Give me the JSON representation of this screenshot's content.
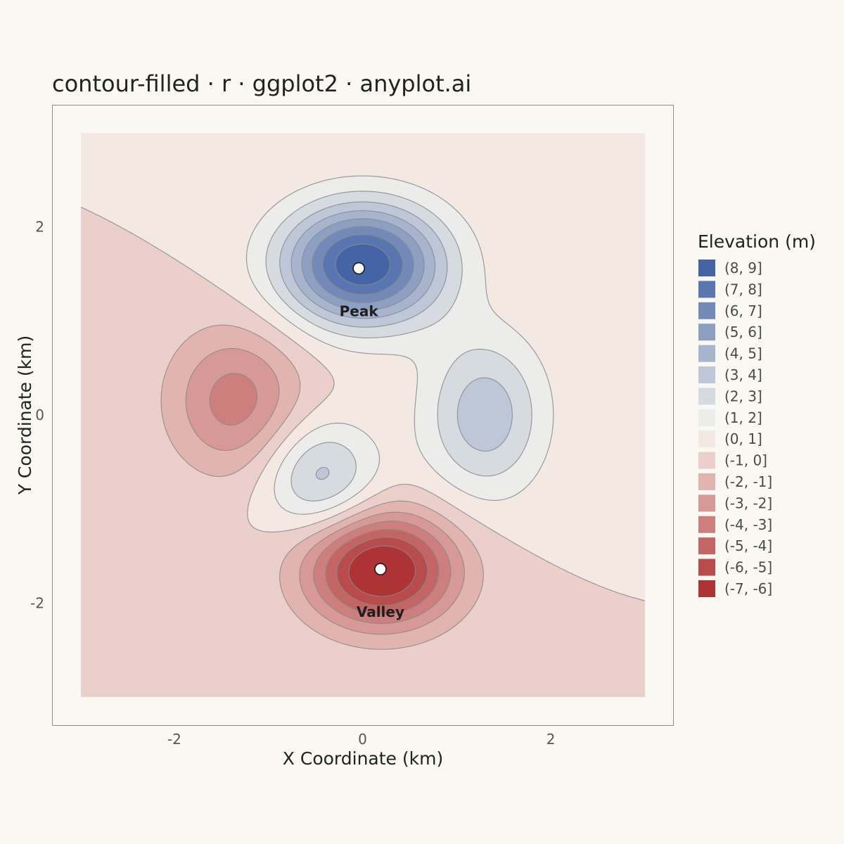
{
  "chart_data": {
    "type": "contour",
    "title": "contour-filled · r · ggplot2 · anyplot.ai",
    "xlabel": "X Coordinate (km)",
    "ylabel": "Y Coordinate (km)",
    "xlim": [
      -3.3,
      3.3
    ],
    "ylim": [
      -3.3,
      3.3
    ],
    "data_extent": {
      "x": [
        -3,
        3
      ],
      "y": [
        -3,
        3
      ]
    },
    "x_ticks": [
      {
        "value": -2,
        "label": "-2"
      },
      {
        "value": 0,
        "label": "0"
      },
      {
        "value": 2,
        "label": "2"
      }
    ],
    "y_ticks": [
      {
        "value": 2,
        "label": "2"
      },
      {
        "value": 0,
        "label": "0"
      },
      {
        "value": -2,
        "label": "-2"
      }
    ],
    "grid": false,
    "legend_position": "right",
    "legend_title": "Elevation (m)",
    "legend": [
      {
        "label": "(8, 9]",
        "color": "#4464A6"
      },
      {
        "label": "(7, 8]",
        "color": "#5A76B0"
      },
      {
        "label": "(6, 7]",
        "color": "#7389B8"
      },
      {
        "label": "(5, 6]",
        "color": "#8DA0C2"
      },
      {
        "label": "(4, 5]",
        "color": "#A7B4CE"
      },
      {
        "label": "(3, 4]",
        "color": "#BEC7D8"
      },
      {
        "label": "(2, 3]",
        "color": "#D6DBE2"
      },
      {
        "label": "(1, 2]",
        "color": "#ECECEA"
      },
      {
        "label": "(0, 1]",
        "color": "#F4E8E3"
      },
      {
        "label": "(-1, 0]",
        "color": "#EBCFCB"
      },
      {
        "label": "(-2, -1]",
        "color": "#E1B4B0"
      },
      {
        "label": "(-3, -2]",
        "color": "#D69996"
      },
      {
        "label": "(-4, -3]",
        "color": "#CC7F7D"
      },
      {
        "label": "(-5, -4]",
        "color": "#C26564"
      },
      {
        "label": "(-6, -5]",
        "color": "#B84C4C"
      },
      {
        "label": "(-7, -6]",
        "color": "#AE3334"
      }
    ],
    "annotations": [
      {
        "label": "Peak",
        "x": -0.04,
        "y": 1.56
      },
      {
        "label": "Valley",
        "x": 0.19,
        "y": -1.64
      }
    ],
    "surface": {
      "components": [
        {
          "amplitude": 9.0,
          "x0": 0.0,
          "y0": 1.6,
          "sx": 0.6,
          "sy": 0.45
        },
        {
          "amplitude": -7.5,
          "x0": 0.2,
          "y0": -1.65,
          "sx": 0.55,
          "sy": 0.42
        },
        {
          "amplitude": -3.5,
          "x0": -1.35,
          "y0": 0.15,
          "sx": 0.5,
          "sy": 0.55
        },
        {
          "amplitude": 3.7,
          "x0": 1.3,
          "y0": 0.0,
          "sx": 0.45,
          "sy": 0.6
        },
        {
          "amplitude": 3.5,
          "x0": -0.45,
          "y0": -0.65,
          "sx": 0.42,
          "sy": 0.42
        }
      ],
      "levels": [
        -7,
        -6,
        -5,
        -4,
        -3,
        -2,
        -1,
        0,
        1,
        2,
        3,
        4,
        5,
        6,
        7,
        8,
        9
      ]
    },
    "colors": {
      "background": "#FAF8F2",
      "panel_border": "#8C8C8C",
      "contour_line": "#8A8A8A",
      "text": "#222222",
      "tick_text": "#555555"
    }
  }
}
